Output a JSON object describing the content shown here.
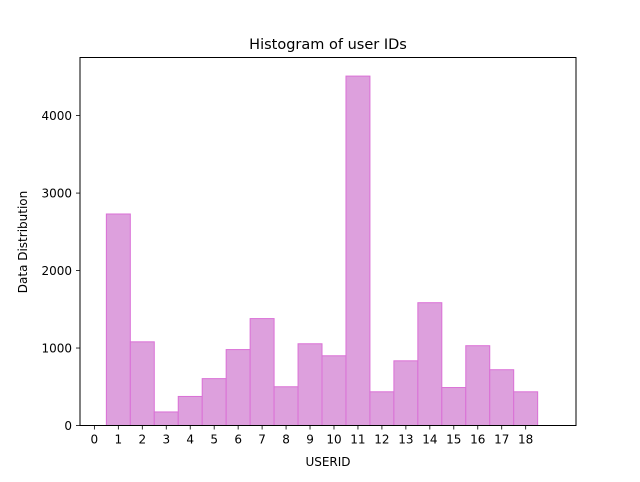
{
  "chart_data": {
    "type": "bar",
    "title": "Histogram of user IDs",
    "xlabel": "USERID",
    "ylabel": "Data Distribution",
    "x_ticks": [
      0,
      1,
      2,
      3,
      4,
      5,
      6,
      7,
      8,
      9,
      10,
      11,
      12,
      13,
      14,
      15,
      16,
      17,
      18
    ],
    "y_ticks": [
      0,
      1000,
      2000,
      3000,
      4000
    ],
    "xlim": [
      -0.6,
      20.1
    ],
    "ylim": [
      0,
      4750
    ],
    "categories": [
      "1",
      "2",
      "3",
      "4",
      "5",
      "6",
      "7",
      "8",
      "9",
      "10",
      "11",
      "12",
      "13",
      "14",
      "15",
      "16",
      "17",
      "18"
    ],
    "values": [
      2730,
      1080,
      175,
      375,
      605,
      980,
      1380,
      500,
      1055,
      900,
      4510,
      435,
      835,
      1585,
      490,
      1030,
      720,
      435
    ],
    "bar_fill": "#dda0dd",
    "bar_edge": "#da70d6",
    "grid": false
  }
}
